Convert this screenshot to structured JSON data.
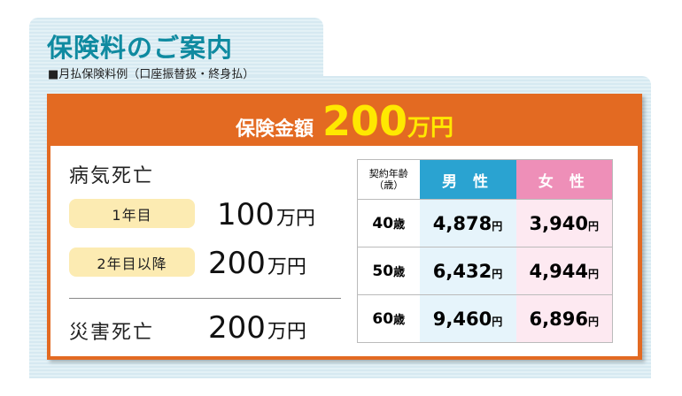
{
  "title": "保険料のご案内",
  "subtitle": "■月払保険料例（口座振替扱・終身払）",
  "banner": {
    "label": "保険金額",
    "amount": "200",
    "unit": "万円"
  },
  "illness": {
    "heading": "病気死亡",
    "rows": [
      {
        "period": "1年目",
        "amount": "100",
        "unit": "万円"
      },
      {
        "period": "2年目以降",
        "amount": "200",
        "unit": "万円"
      }
    ]
  },
  "accident": {
    "heading": "災害死亡",
    "amount": "200",
    "unit": "万円"
  },
  "table": {
    "headers": {
      "age_line1": "契約年齢",
      "age_line2": "（歳）",
      "male": "男 性",
      "female": "女 性"
    },
    "yen": "円",
    "rows": [
      {
        "age": "40",
        "age_unit": "歳",
        "male": "4,878",
        "female": "3,940"
      },
      {
        "age": "50",
        "age_unit": "歳",
        "male": "6,432",
        "female": "4,944"
      },
      {
        "age": "60",
        "age_unit": "歳",
        "male": "9,460",
        "female": "6,896"
      }
    ]
  },
  "colors": {
    "title": "#0f8aa0",
    "orange": "#e36a22",
    "yellow": "#ffe800",
    "male": "#2aa3d1",
    "female": "#ee8fb8"
  }
}
